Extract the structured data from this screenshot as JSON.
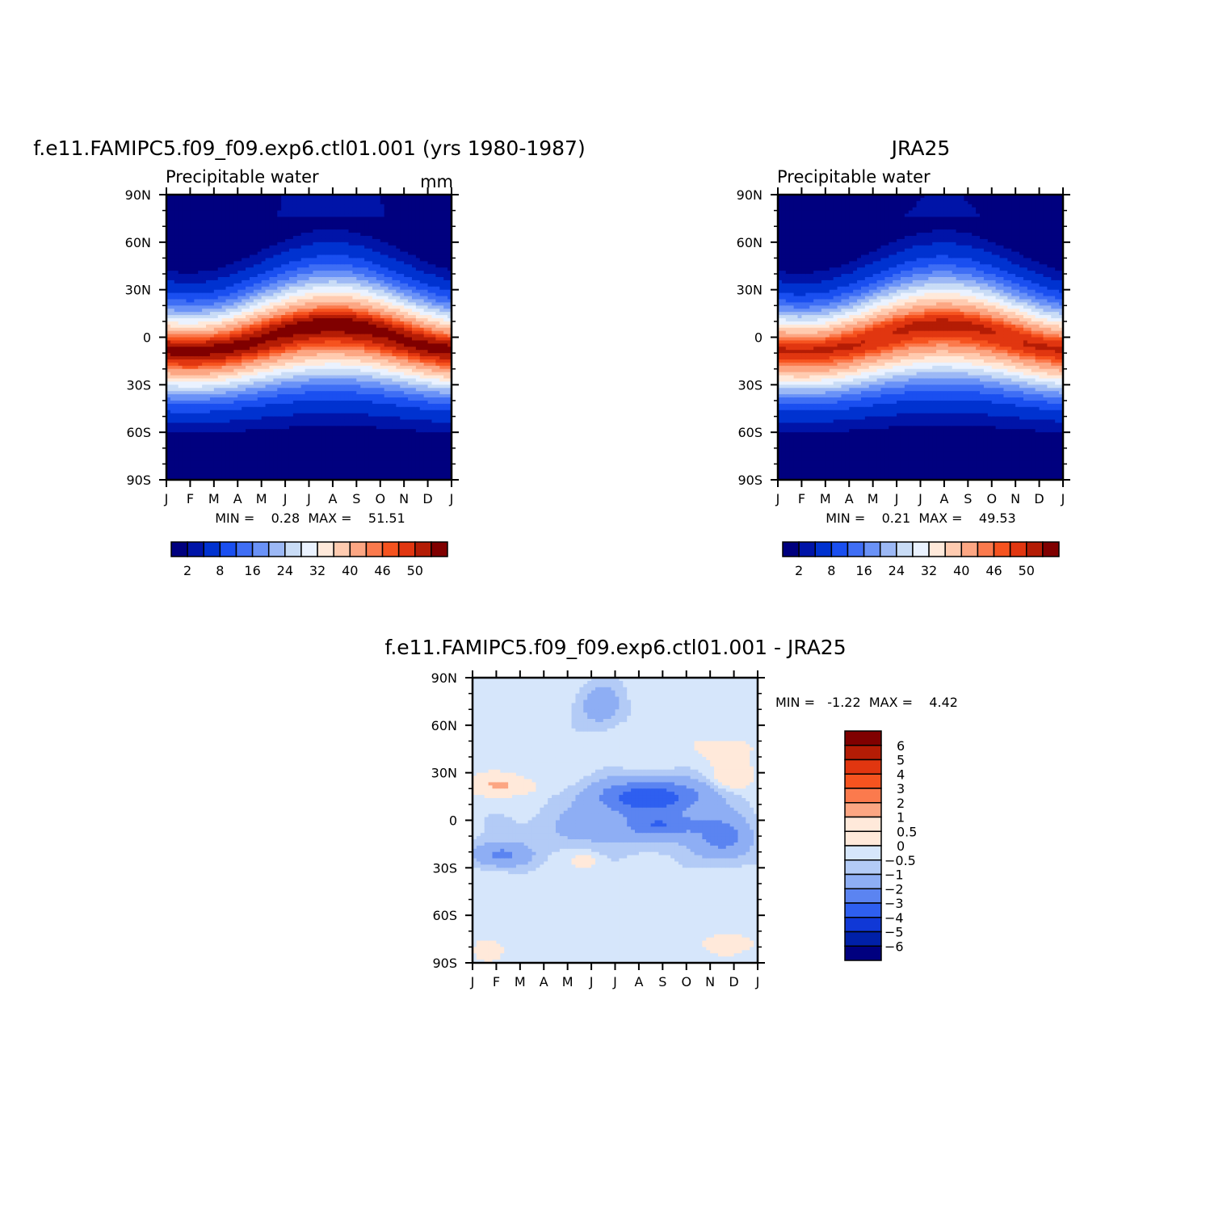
{
  "chart_data": [
    {
      "type": "heatmap",
      "title": "f.e11.FAMIPC5.f09_f09.exp6.ctl01.001 (yrs 1980-1987)",
      "left_subtitle": "Precipitable water",
      "right_subtitle": "mm",
      "stats": "MIN =    0.28  MAX =    51.51",
      "min": 0.28,
      "max": 51.51,
      "x_ticks": [
        "J",
        "F",
        "M",
        "A",
        "M",
        "J",
        "J",
        "A",
        "S",
        "O",
        "N",
        "D",
        "J"
      ],
      "y_ticks": [
        "90N",
        "60N",
        "30N",
        "0",
        "30S",
        "60S",
        "90S"
      ],
      "ylim": [
        -90,
        90
      ],
      "colorbar": {
        "labels": [
          "2",
          "8",
          "16",
          "24",
          "32",
          "40",
          "46",
          "50"
        ],
        "colors": [
          "#00007f",
          "#0014a8",
          "#0032d0",
          "#1a4ff0",
          "#3f6ef5",
          "#6a92f7",
          "#9cb8f5",
          "#c9dcf6",
          "#eaf2ff",
          "#ffe9da",
          "#ffcbb0",
          "#fca683",
          "#fb7a4d",
          "#f6531f",
          "#e13610",
          "#b41c05",
          "#800000"
        ],
        "levels": [
          2,
          4,
          8,
          12,
          16,
          20,
          24,
          28,
          32,
          36,
          40,
          44,
          46,
          48,
          50,
          52
        ]
      },
      "field": {
        "eq_amp": 51.0,
        "peak_shift_deg": 8,
        "polar_north": 2,
        "polar_south": 0.5
      }
    },
    {
      "type": "heatmap",
      "title": "JRA25",
      "left_subtitle": "Precipitable water",
      "stats": "MIN =    0.21  MAX =    49.53",
      "min": 0.21,
      "max": 49.53,
      "x_ticks": [
        "J",
        "F",
        "M",
        "A",
        "M",
        "J",
        "J",
        "A",
        "S",
        "O",
        "N",
        "D",
        "J"
      ],
      "y_ticks": [
        "90N",
        "60N",
        "30N",
        "0",
        "30S",
        "60S",
        "90S"
      ],
      "ylim": [
        -90,
        90
      ],
      "colorbar": {
        "labels": [
          "2",
          "8",
          "16",
          "24",
          "32",
          "40",
          "46",
          "50"
        ],
        "colors": [
          "#00007f",
          "#0014a8",
          "#0032d0",
          "#1a4ff0",
          "#3f6ef5",
          "#6a92f7",
          "#9cb8f5",
          "#c9dcf6",
          "#eaf2ff",
          "#ffe9da",
          "#ffcbb0",
          "#fca683",
          "#fb7a4d",
          "#f6531f",
          "#e13610",
          "#b41c05",
          "#800000"
        ],
        "levels": [
          2,
          4,
          8,
          12,
          16,
          20,
          24,
          28,
          32,
          36,
          40,
          44,
          46,
          48,
          50,
          52
        ]
      },
      "field": {
        "eq_amp": 48.5,
        "peak_shift_deg": 8,
        "polar_north": 1.5,
        "polar_south": 0.4
      }
    },
    {
      "type": "heatmap",
      "title": "f.e11.FAMIPC5.f09_f09.exp6.ctl01.001 - JRA25",
      "stats": "MIN =   -1.22  MAX =    4.42",
      "min": -1.22,
      "max": 4.42,
      "x_ticks": [
        "J",
        "F",
        "M",
        "A",
        "M",
        "J",
        "J",
        "A",
        "S",
        "O",
        "N",
        "D",
        "J"
      ],
      "y_ticks": [
        "90N",
        "60N",
        "30N",
        "0",
        "30S",
        "60S",
        "90S"
      ],
      "ylim": [
        -90,
        90
      ],
      "colorbar": {
        "orientation": "vertical",
        "labels": [
          "6",
          "5",
          "4",
          "3",
          "2",
          "1",
          "0.5",
          "0",
          "-0.5",
          "-1",
          "-2",
          "-3",
          "-4",
          "-5",
          "-6"
        ],
        "colors": [
          "#800000",
          "#b41c05",
          "#e13610",
          "#f6531f",
          "#fb7a4d",
          "#fca683",
          "#ffe9da",
          "#ffe9da",
          "#d6e6fb",
          "#b3cbf6",
          "#8eaef4",
          "#5b84f1",
          "#2e5ff0",
          "#1038d6",
          "#0020a8",
          "#00007f"
        ],
        "levels": [
          -6,
          -5,
          -4,
          -3,
          -2,
          -1,
          -0.5,
          0,
          0.5,
          1,
          2,
          3,
          4,
          5,
          6
        ]
      }
    }
  ]
}
